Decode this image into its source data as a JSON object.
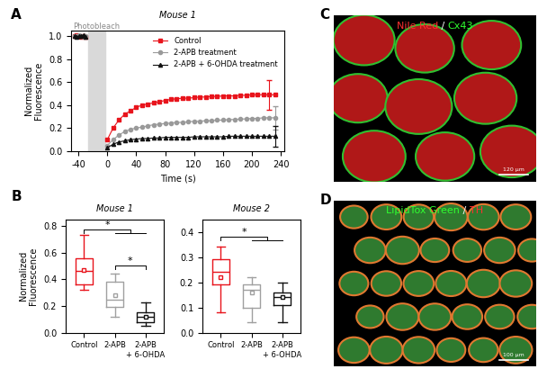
{
  "chart_data": [
    {
      "panel": "A",
      "type": "line",
      "title": "Mouse 1",
      "x_label": "Time (s)",
      "y_label": "Normalized\nFluorescence",
      "x": [
        -45,
        -42,
        -39,
        -36,
        -33,
        -30,
        -15,
        0,
        8,
        16,
        24,
        32,
        40,
        48,
        56,
        64,
        72,
        80,
        88,
        96,
        104,
        112,
        120,
        128,
        136,
        144,
        152,
        160,
        168,
        176,
        184,
        192,
        200,
        208,
        216,
        224,
        232
      ],
      "series": [
        {
          "name": "Control",
          "color": "#e8141c",
          "marker": "s",
          "values": [
            1.0,
            1.01,
            1.0,
            0.99,
            1.0,
            0.99,
            null,
            0.1,
            0.2,
            0.27,
            0.32,
            0.35,
            0.38,
            0.4,
            0.41,
            0.42,
            0.43,
            0.44,
            0.45,
            0.455,
            0.46,
            0.46,
            0.465,
            0.47,
            0.47,
            0.475,
            0.475,
            0.48,
            0.48,
            0.48,
            0.485,
            0.485,
            0.49,
            0.49,
            0.49,
            0.49,
            0.49
          ],
          "errors": [
            null,
            null,
            null,
            null,
            null,
            null,
            null,
            null,
            null,
            null,
            null,
            null,
            null,
            null,
            null,
            null,
            null,
            null,
            null,
            null,
            null,
            null,
            null,
            null,
            null,
            null,
            null,
            null,
            null,
            null,
            null,
            null,
            null,
            null,
            null,
            0.13,
            null
          ]
        },
        {
          "name": "2-APB treatment",
          "color": "#9a9a9a",
          "marker": "o",
          "values": [
            1.0,
            1.0,
            1.01,
            1.0,
            0.99,
            1.0,
            null,
            0.05,
            0.1,
            0.14,
            0.17,
            0.19,
            0.2,
            0.21,
            0.22,
            0.23,
            0.235,
            0.24,
            0.245,
            0.25,
            0.25,
            0.255,
            0.26,
            0.26,
            0.265,
            0.265,
            0.27,
            0.27,
            0.275,
            0.275,
            0.28,
            0.28,
            0.285,
            0.285,
            0.29,
            0.29,
            0.29
          ],
          "errors": [
            null,
            null,
            null,
            null,
            null,
            null,
            null,
            null,
            null,
            null,
            null,
            null,
            null,
            null,
            null,
            null,
            null,
            null,
            null,
            null,
            null,
            null,
            null,
            null,
            null,
            null,
            null,
            null,
            null,
            null,
            null,
            null,
            null,
            null,
            null,
            null,
            0.1
          ]
        },
        {
          "name": "2-APB + 6-OHDA treatment",
          "color": "#111111",
          "marker": "^",
          "values": [
            1.0,
            0.99,
            1.0,
            1.0,
            1.01,
            0.99,
            null,
            0.03,
            0.06,
            0.08,
            0.09,
            0.1,
            0.105,
            0.11,
            0.11,
            0.115,
            0.115,
            0.12,
            0.12,
            0.12,
            0.12,
            0.12,
            0.125,
            0.125,
            0.125,
            0.125,
            0.125,
            0.125,
            0.13,
            0.13,
            0.13,
            0.13,
            0.13,
            0.13,
            0.13,
            0.13,
            0.13
          ],
          "errors": [
            null,
            null,
            null,
            null,
            null,
            null,
            null,
            null,
            null,
            null,
            null,
            null,
            null,
            null,
            null,
            null,
            null,
            null,
            null,
            null,
            null,
            null,
            null,
            null,
            null,
            null,
            null,
            null,
            null,
            null,
            null,
            null,
            null,
            null,
            null,
            null,
            0.09
          ]
        }
      ],
      "xlim": [
        -50,
        245
      ],
      "xticks": [
        -40,
        0,
        40,
        80,
        120,
        160,
        200,
        240
      ],
      "ylim": [
        0,
        1.05
      ],
      "yticks": [
        {
          "value": 0,
          "label": "0.0"
        },
        {
          "value": 0.2,
          "label": "0.2"
        },
        {
          "value": 0.4,
          "label": "0.4"
        },
        {
          "value": 0.6,
          "label": "0.6"
        },
        {
          "value": 0.8,
          "label": "0.8"
        },
        {
          "value": 1.0,
          "label": "1.0"
        }
      ],
      "shaded": {
        "from": -27,
        "to": -3,
        "label": "Photobleach"
      },
      "legend": "upper right"
    },
    {
      "panel": "B",
      "type": "box",
      "title": "Mouse 1",
      "y_label": "Normalized\nFluorescence",
      "categories": [
        "Control",
        "2-APB",
        "2-APB\n+ 6-OHDA"
      ],
      "colors": [
        "#e8141c",
        "#a0a0a0",
        "#111111"
      ],
      "boxes": [
        {
          "whislo": 0.32,
          "q1": 0.36,
          "med": 0.46,
          "mean": 0.47,
          "q3": 0.56,
          "whishi": 0.73
        },
        {
          "whislo": 0.12,
          "q1": 0.19,
          "med": 0.25,
          "mean": 0.28,
          "q3": 0.38,
          "whishi": 0.44
        },
        {
          "whislo": 0.05,
          "q1": 0.08,
          "med": 0.12,
          "mean": 0.12,
          "q3": 0.15,
          "whishi": 0.23
        }
      ],
      "ylim": [
        0,
        0.85
      ],
      "yticks": [
        {
          "value": 0,
          "label": "0.0"
        },
        {
          "value": 0.2,
          "label": "0.2"
        },
        {
          "value": 0.4,
          "label": "0.4"
        },
        {
          "value": 0.6,
          "label": "0.6"
        },
        {
          "value": 0.8,
          "label": "0.8"
        }
      ],
      "significance": [
        {
          "from": 0,
          "to": [
            1,
            2
          ],
          "y": 0.77,
          "label": "*"
        },
        {
          "from": 1,
          "to": [
            2
          ],
          "y": 0.5,
          "label": "*"
        }
      ]
    },
    {
      "type": "box",
      "title": "Mouse 2",
      "categories": [
        "Control",
        "2-APB",
        "2-APB\n+ 6-OHDA"
      ],
      "colors": [
        "#e8141c",
        "#a0a0a0",
        "#111111"
      ],
      "boxes": [
        {
          "whislo": 0.08,
          "q1": 0.19,
          "med": 0.24,
          "mean": 0.22,
          "q3": 0.29,
          "whishi": 0.34
        },
        {
          "whislo": 0.04,
          "q1": 0.1,
          "med": 0.17,
          "mean": 0.16,
          "q3": 0.19,
          "whishi": 0.22
        },
        {
          "whislo": 0.04,
          "q1": 0.11,
          "med": 0.14,
          "mean": 0.14,
          "q3": 0.16,
          "whishi": 0.2
        }
      ],
      "ylim": [
        0,
        0.45
      ],
      "yticks": [
        {
          "value": 0,
          "label": "0.0"
        },
        {
          "value": 0.1,
          "label": "0.1"
        },
        {
          "value": 0.2,
          "label": "0.2"
        },
        {
          "value": 0.3,
          "label": "0.3"
        },
        {
          "value": 0.4,
          "label": "0.4"
        }
      ],
      "significance": [
        {
          "from": 0,
          "to": [
            1,
            2
          ],
          "y": 0.38,
          "label": "*"
        }
      ]
    },
    {
      "panel": "C",
      "type": "image",
      "title_parts": [
        "Nile Red",
        " / ",
        "Cx43"
      ],
      "title_colors": [
        "#ff3030",
        "#ffffff",
        "#30ff30"
      ],
      "scale_bar": "120 µm"
    },
    {
      "panel": "D",
      "type": "image",
      "title_parts": [
        "LipidTox Green",
        " / ",
        "TH"
      ],
      "title_colors": [
        "#30ff30",
        "#ffffff",
        "#ff3030"
      ],
      "scale_bar": "100 µm"
    }
  ]
}
